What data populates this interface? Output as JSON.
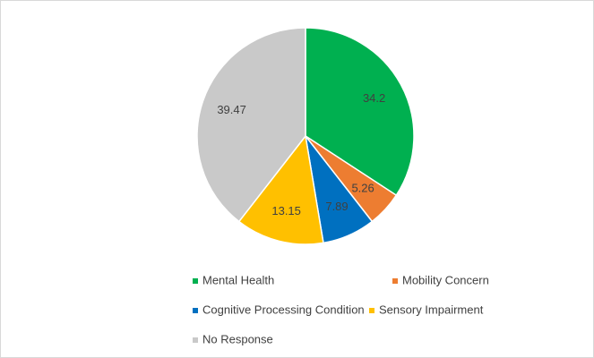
{
  "chart_data": {
    "type": "pie",
    "categories": [
      "Mental Health",
      "Mobility Concern",
      "Cognitive Processing Condition",
      "Sensory Impairment",
      "No Response"
    ],
    "values": [
      34.2,
      5.26,
      7.89,
      13.15,
      39.47
    ],
    "colors": [
      "#00b050",
      "#ed7d31",
      "#0070c0",
      "#ffc000",
      "#c9c9c9"
    ],
    "legend": "bottom"
  }
}
